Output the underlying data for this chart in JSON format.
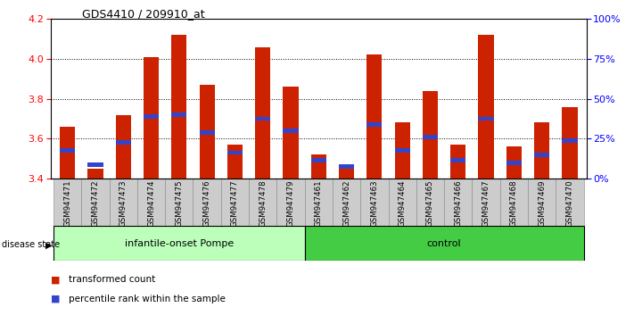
{
  "title": "GDS4410 / 209910_at",
  "samples": [
    "GSM947471",
    "GSM947472",
    "GSM947473",
    "GSM947474",
    "GSM947475",
    "GSM947476",
    "GSM947477",
    "GSM947478",
    "GSM947479",
    "GSM947461",
    "GSM947462",
    "GSM947463",
    "GSM947464",
    "GSM947465",
    "GSM947466",
    "GSM947467",
    "GSM947468",
    "GSM947469",
    "GSM947470"
  ],
  "red_values": [
    3.66,
    3.45,
    3.72,
    4.01,
    4.12,
    3.87,
    3.57,
    4.06,
    3.86,
    3.52,
    3.46,
    4.02,
    3.68,
    3.84,
    3.57,
    4.12,
    3.56,
    3.68,
    3.76
  ],
  "blue_values": [
    3.54,
    3.47,
    3.58,
    3.71,
    3.72,
    3.63,
    3.53,
    3.7,
    3.64,
    3.49,
    3.46,
    3.67,
    3.54,
    3.61,
    3.49,
    3.7,
    3.48,
    3.52,
    3.59
  ],
  "ymin": 3.4,
  "ymax": 4.2,
  "yticks_left": [
    3.4,
    3.6,
    3.8,
    4.0,
    4.2
  ],
  "yticks_right_pct": [
    0,
    25,
    50,
    75,
    100
  ],
  "right_labels": [
    "0%",
    "25%",
    "50%",
    "75%",
    "100%"
  ],
  "group1_label": "infantile-onset Pompe",
  "group2_label": "control",
  "group1_count": 9,
  "group2_count": 10,
  "disease_state_label": "disease state",
  "bar_color": "#cc2200",
  "blue_color": "#3344cc",
  "bar_bottom": 3.4,
  "group1_bg": "#bbffbb",
  "group2_bg": "#44cc44",
  "xtick_bg": "#cccccc",
  "blue_bar_height": 0.022
}
